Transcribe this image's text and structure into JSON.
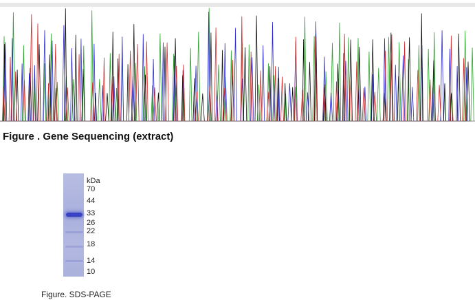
{
  "sequencing_figure": {
    "caption": "Figure . Gene Sequencing (extract)",
    "trace_colors": {
      "A": "#2aa12a",
      "C": "#2a2ad0",
      "G": "#111111",
      "T": "#d02a2a"
    }
  },
  "sds_page_figure": {
    "caption": "Figure. SDS-PAGE",
    "unit_label": "kDa",
    "markers": [
      "70",
      "44",
      "33",
      "26",
      "22",
      "18",
      "14",
      "10"
    ],
    "lane_color": "#b0b6df",
    "band_color": "#3a42c4"
  }
}
